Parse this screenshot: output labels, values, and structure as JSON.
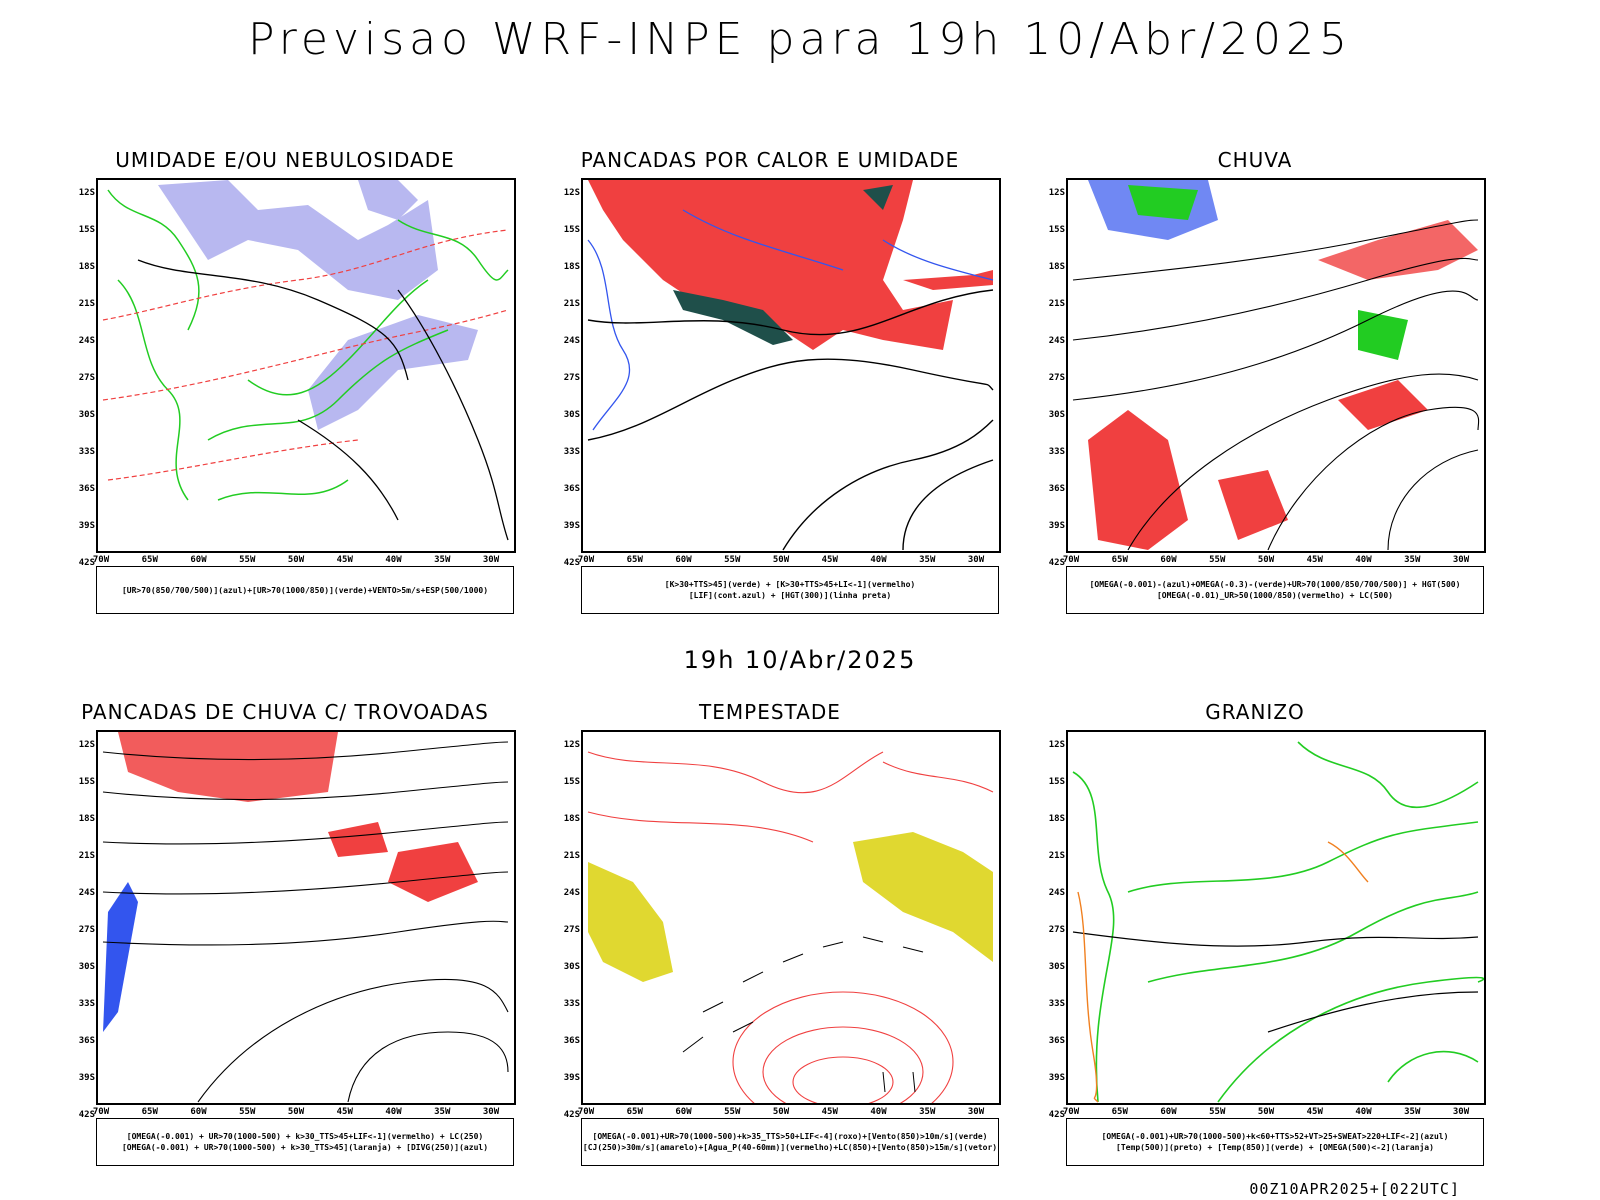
{
  "title": "Previsao WRF-INPE  para 19h 10/Abr/2025",
  "mid_title": "19h 10/Abr/2025",
  "footer": "00Z10APR2025+[022UTC]",
  "lat_labels": [
    "12S",
    "15S",
    "18S",
    "21S",
    "24S",
    "27S",
    "30S",
    "33S",
    "36S",
    "39S",
    "42S"
  ],
  "lon_labels": [
    "70W",
    "65W",
    "60W",
    "55W",
    "50W",
    "45W",
    "40W",
    "35W",
    "30W"
  ],
  "panels": [
    {
      "title": "UMIDADE E/OU NEBULOSIDADE",
      "legend": [
        "[UR>70(850/700/500)](azul)+[UR>70(1000/850)](verde)+VENTO>5m/s+ESP(500/1000)"
      ]
    },
    {
      "title": "PANCADAS POR CALOR E UMIDADE",
      "legend": [
        "[K>30+TTS>45](verde)  +  [K>30+TTS>45+LI<-1](vermelho)",
        "[LIF](cont.azul)  +  [HGT(300)](linha preta)"
      ]
    },
    {
      "title": "CHUVA",
      "legend": [
        "[OMEGA(-0.001)-(azul)+OMEGA(-0.3)-(verde)+UR>70(1000/850/700/500)]  +  HGT(500)",
        "[OMEGA(-0.01)_UR>50(1000/850)(vermelho)  +  LC(500)"
      ]
    },
    {
      "title": "PANCADAS DE CHUVA C/ TROVOADAS",
      "legend": [
        "[OMEGA(-0.001)  +  UR>70(1000-500)  +  k>30_TTS>45+LIF<-1](vermelho)  +  LC(250)",
        "[OMEGA(-0.001)  +  UR>70(1000-500)  +  k>30_TTS>45](laranja)  +  [DIVG(250)](azul)"
      ]
    },
    {
      "title": "TEMPESTADE",
      "legend": [
        "[OMEGA(-0.001)+UR>70(1000-500)+k>35_TTS>50+LIF<-4](roxo)+[Vento(850)>10m/s](verde)",
        "[CJ(250)>30m/s](amarelo)+[Agua_P(40-60mm)](vermelho)+LC(850)+[Vento(850)>15m/s](vetor)"
      ]
    },
    {
      "title": "GRANIZO",
      "legend": [
        "[OMEGA(-0.001)+UR>70(1000-500)+k<60+TTS>52+VT>25+SWEAT>220+LIF<-2](azul)",
        "[Temp(500)](preto)  +  [Temp(850)](verde)  +  [OMEGA(500)<-2](laranja)"
      ]
    }
  ],
  "colors": {
    "red": "#f04040",
    "green": "#22cc22",
    "blue": "#3355ee",
    "lavender": "#b8b8f0",
    "darkteal": "#1f4f4a",
    "yellow": "#e0d830",
    "orange": "#f08020",
    "black": "#000000"
  }
}
